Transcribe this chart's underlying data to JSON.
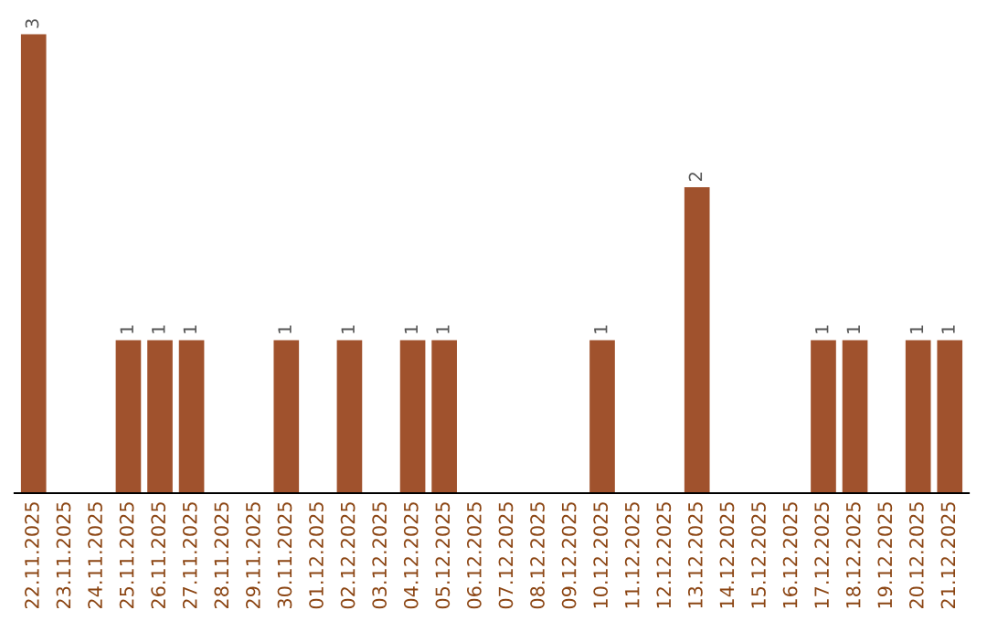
{
  "chart_data": {
    "type": "bar",
    "categories": [
      "22.11.2025",
      "23.11.2025",
      "24.11.2025",
      "25.11.2025",
      "26.11.2025",
      "27.11.2025",
      "28.11.2025",
      "29.11.2025",
      "30.11.2025",
      "01.12.2025",
      "02.12.2025",
      "03.12.2025",
      "04.12.2025",
      "05.12.2025",
      "06.12.2025",
      "07.12.2025",
      "08.12.2025",
      "09.12.2025",
      "10.12.2025",
      "11.12.2025",
      "12.12.2025",
      "13.12.2025",
      "14.12.2025",
      "15.12.2025",
      "16.12.2025",
      "17.12.2025",
      "18.12.2025",
      "19.12.2025",
      "20.12.2025",
      "21.12.2025"
    ],
    "values": [
      3,
      null,
      null,
      1,
      1,
      1,
      null,
      null,
      1,
      null,
      1,
      null,
      1,
      1,
      null,
      null,
      null,
      null,
      1,
      null,
      null,
      2,
      null,
      null,
      null,
      1,
      1,
      null,
      1,
      1
    ],
    "color": "#a0522d",
    "data_labels": true,
    "grid": false,
    "legend": false
  }
}
